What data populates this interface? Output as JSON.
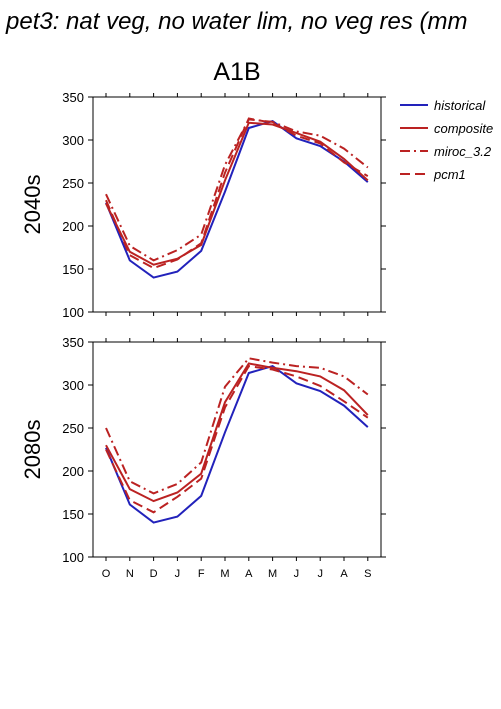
{
  "page_title": "pet3: nat veg, no water lim, no veg res (mm",
  "scenario": "A1B",
  "chart_data": [
    {
      "type": "line",
      "panel_label": "2040s",
      "months": [
        "O",
        "N",
        "D",
        "J",
        "F",
        "M",
        "A",
        "M",
        "J",
        "J",
        "A",
        "S"
      ],
      "ylim": [
        100,
        350
      ],
      "yticks": [
        "100",
        "150",
        "200",
        "250",
        "300",
        "350"
      ],
      "grid": false,
      "series": [
        {
          "name": "historical",
          "color": "#2222bb",
          "dash": "solid",
          "values": [
            227,
            160,
            140,
            147,
            171,
            240,
            314,
            322,
            302,
            293,
            275,
            251
          ]
        },
        {
          "name": "composite",
          "color": "#bb2222",
          "dash": "solid",
          "values": [
            226,
            170,
            155,
            162,
            178,
            253,
            320,
            318,
            308,
            298,
            278,
            253
          ]
        },
        {
          "name": "miroc_3.2",
          "color": "#bb2222",
          "dash": "dashdot",
          "values": [
            237,
            177,
            160,
            172,
            190,
            271,
            324,
            321,
            310,
            305,
            290,
            268
          ]
        },
        {
          "name": "pcm1",
          "color": "#bb2222",
          "dash": "dash",
          "values": [
            230,
            166,
            151,
            161,
            180,
            262,
            325,
            320,
            305,
            296,
            274,
            258
          ]
        }
      ]
    },
    {
      "type": "line",
      "panel_label": "2080s",
      "months": [
        "O",
        "N",
        "D",
        "J",
        "F",
        "M",
        "A",
        "M",
        "J",
        "J",
        "A",
        "S"
      ],
      "ylim": [
        100,
        350
      ],
      "yticks": [
        "100",
        "150",
        "200",
        "250",
        "300",
        "350"
      ],
      "grid": false,
      "series": [
        {
          "name": "historical",
          "color": "#2222bb",
          "dash": "solid",
          "values": [
            227,
            161,
            140,
            147,
            171,
            245,
            314,
            322,
            302,
            293,
            276,
            251
          ]
        },
        {
          "name": "composite",
          "color": "#bb2222",
          "dash": "solid",
          "values": [
            230,
            179,
            165,
            175,
            197,
            280,
            325,
            320,
            316,
            310,
            294,
            265
          ]
        },
        {
          "name": "miroc_3.2",
          "color": "#bb2222",
          "dash": "dashdot",
          "values": [
            250,
            188,
            174,
            185,
            210,
            298,
            331,
            326,
            322,
            320,
            310,
            289
          ]
        },
        {
          "name": "pcm1",
          "color": "#bb2222",
          "dash": "dash",
          "values": [
            225,
            166,
            152,
            170,
            191,
            274,
            322,
            318,
            310,
            299,
            281,
            262
          ]
        }
      ]
    }
  ]
}
